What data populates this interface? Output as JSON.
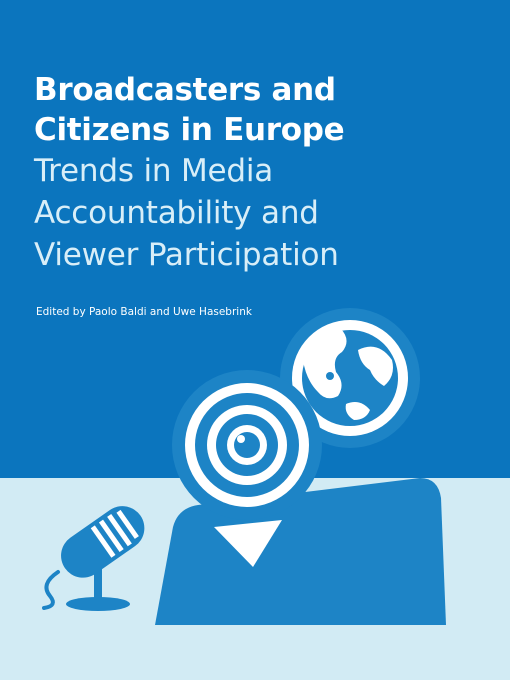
{
  "cover": {
    "title_lines": [
      "Broadcasters and",
      "Citizens in Europe"
    ],
    "subtitle_lines": [
      "Trends in Media",
      "Accountability and",
      "Viewer Participation"
    ],
    "editors": "Edited by Paolo Baldi and Uwe Hasebrink"
  },
  "colors": {
    "background_blue": "#0b75be",
    "floor_light_blue": "#d2ebf4",
    "illustration_blue": "#1d84c6",
    "text_white": "#ffffff"
  },
  "icons": [
    "microphone-icon",
    "camera-lens-icon",
    "globe-icon",
    "person-figure-icon"
  ]
}
